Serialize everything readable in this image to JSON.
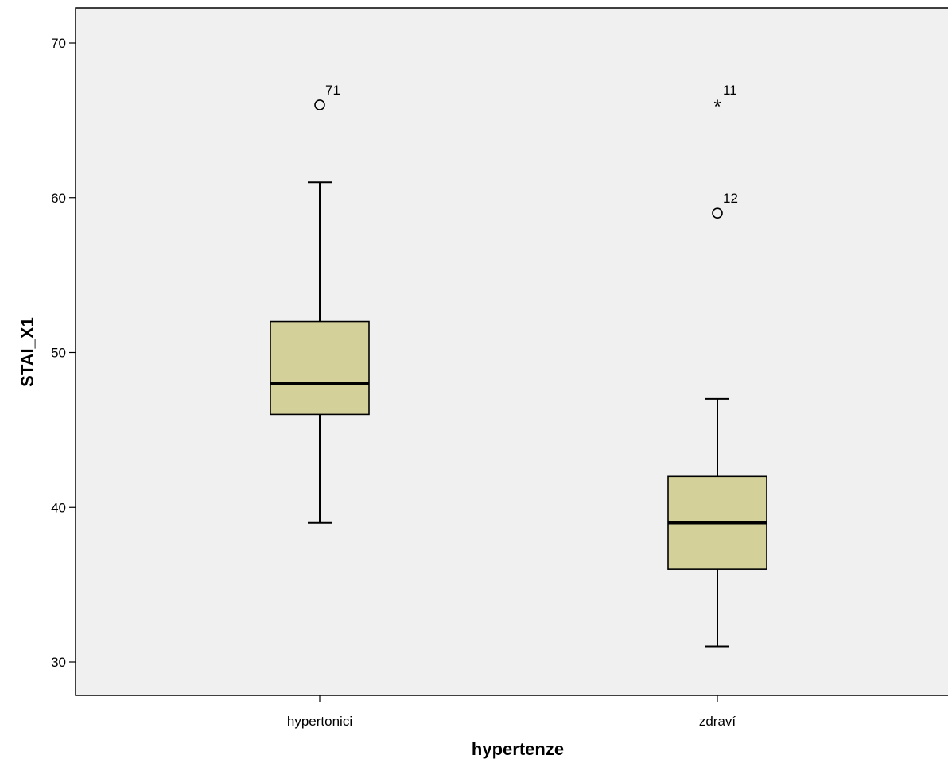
{
  "chart_data": {
    "type": "boxplot",
    "title": "",
    "xlabel": "hypertenze",
    "ylabel": "STAI_X1",
    "ylim": [
      28,
      73
    ],
    "yticks": [
      30,
      40,
      50,
      60,
      70
    ],
    "grid": false,
    "legend": "none",
    "categories": [
      "hypertonici",
      "zdraví"
    ],
    "boxes": [
      {
        "category": "hypertonici",
        "whisker_low": 39,
        "q1": 46,
        "median": 48,
        "q3": 52,
        "whisker_high": 61,
        "outliers": [
          {
            "value": 66,
            "label": "71",
            "marker": "circle"
          }
        ]
      },
      {
        "category": "zdraví",
        "whisker_low": 31,
        "q1": 36,
        "median": 39,
        "q3": 42,
        "whisker_high": 47,
        "outliers": [
          {
            "value": 66,
            "label": "11",
            "marker": "star"
          },
          {
            "value": 59,
            "label": "12",
            "marker": "circle"
          }
        ]
      }
    ],
    "colors": {
      "plot_background": "#f0f0f0",
      "box_fill": "#d4d09a",
      "line": "#000000",
      "text": "#000000"
    }
  }
}
